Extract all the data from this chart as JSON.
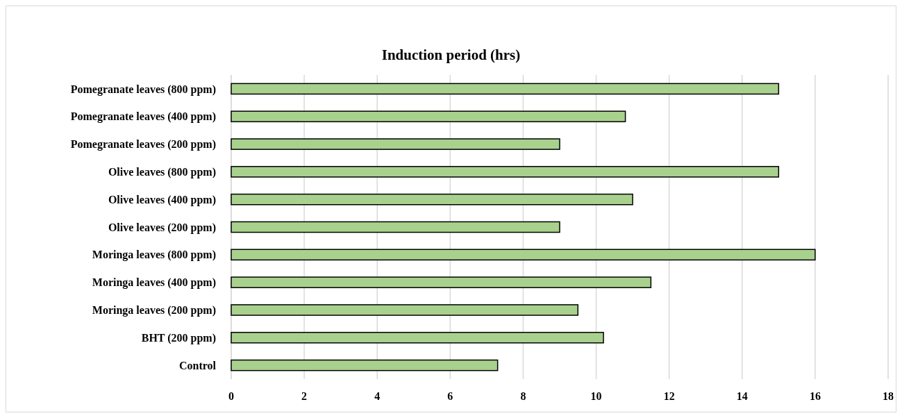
{
  "chart_data": {
    "type": "bar",
    "orientation": "horizontal",
    "title": "Induction period (hrs)",
    "categories": [
      "Pomegranate leaves (800 ppm)",
      "Pomegranate leaves (400 ppm)",
      "Pomegranate leaves (200 ppm)",
      "Olive leaves (800 ppm)",
      "Olive leaves (400 ppm)",
      "Olive leaves (200 ppm)",
      "Moringa leaves (800 ppm)",
      "Moringa leaves (400 ppm)",
      "Moringa leaves (200 ppm)",
      "BHT (200 ppm)",
      "Control"
    ],
    "values": [
      15,
      10.8,
      9,
      15,
      11,
      9,
      16,
      11.5,
      9.5,
      10.2,
      7.3
    ],
    "color": "#a9d18e",
    "xlim": [
      0,
      18
    ],
    "xticks": [
      0,
      2,
      4,
      6,
      8,
      10,
      12,
      14,
      16,
      18
    ],
    "grid": "x"
  }
}
